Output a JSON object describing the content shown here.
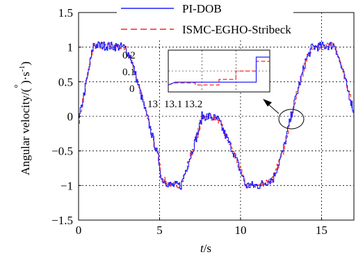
{
  "chart_data": {
    "type": "line",
    "xlabel_italic": "t",
    "xlabel_unit": "/s",
    "ylabel_main": "Angular velocity/(",
    "ylabel_deg": "°",
    "ylabel_unit": ")·s",
    "ylabel_sup": "-1",
    "ylabel_close": ")",
    "xlim": [
      0,
      17
    ],
    "ylim": [
      -1.5,
      1.5
    ],
    "grid": true,
    "legend_position": "top-center",
    "x_ticks": [
      0,
      5,
      10,
      15
    ],
    "x_tick_labels": [
      "0",
      "5",
      "10",
      "15"
    ],
    "y_ticks": [
      -1.5,
      -1,
      -0.5,
      0,
      0.5,
      1,
      1.5
    ],
    "y_tick_labels": [
      "−1.5",
      "−1",
      "−0.5",
      "0",
      "0.5",
      "1",
      "1.5"
    ],
    "series": [
      {
        "name": "PI-DOB",
        "color": "#1f1fff",
        "dash": "solid"
      },
      {
        "name": "ISMC-EGHO-Stribeck",
        "color": "#ff2020",
        "dash": "dashed"
      }
    ],
    "reference_points": {
      "x": [
        0,
        0.3,
        0.9,
        2.8,
        3.2,
        4.9,
        5.1,
        5.7,
        6.3,
        7.4,
        7.6,
        8.1,
        8.6,
        9.6,
        10.3,
        11.1,
        12.0,
        12.6,
        13.2,
        14.0,
        14.4,
        15.8,
        16.4,
        17.0
      ],
      "y": [
        -0.05,
        0.3,
        1.03,
        1.0,
        0.85,
        -0.6,
        -0.9,
        -1.0,
        -1.0,
        -0.2,
        0.0,
        0.0,
        -0.05,
        -0.55,
        -1.0,
        -1.0,
        -0.9,
        -0.5,
        0.1,
        0.8,
        1.0,
        1.03,
        0.55,
        0.05
      ]
    },
    "inset": {
      "xlim": [
        13.0,
        13.3
      ],
      "ylim": [
        -0.05,
        0.25
      ],
      "x_tick_labels": [
        "13",
        "13.1",
        "13.2"
      ],
      "y_tick_labels": [
        "0",
        "0.1",
        "0.2"
      ],
      "pi_dob_steps": {
        "x": [
          13.0,
          13.02,
          13.26,
          13.26,
          13.3
        ],
        "y": [
          0.0,
          0.02,
          0.02,
          0.2,
          0.2
        ]
      },
      "ismc_steps": {
        "x": [
          13.0,
          13.02,
          13.08,
          13.08,
          13.15,
          13.15,
          13.2,
          13.2,
          13.26,
          13.26,
          13.3
        ],
        "y": [
          0.0,
          0.015,
          0.015,
          0.0,
          0.0,
          0.04,
          0.04,
          0.1,
          0.1,
          0.17,
          0.17
        ]
      }
    }
  }
}
